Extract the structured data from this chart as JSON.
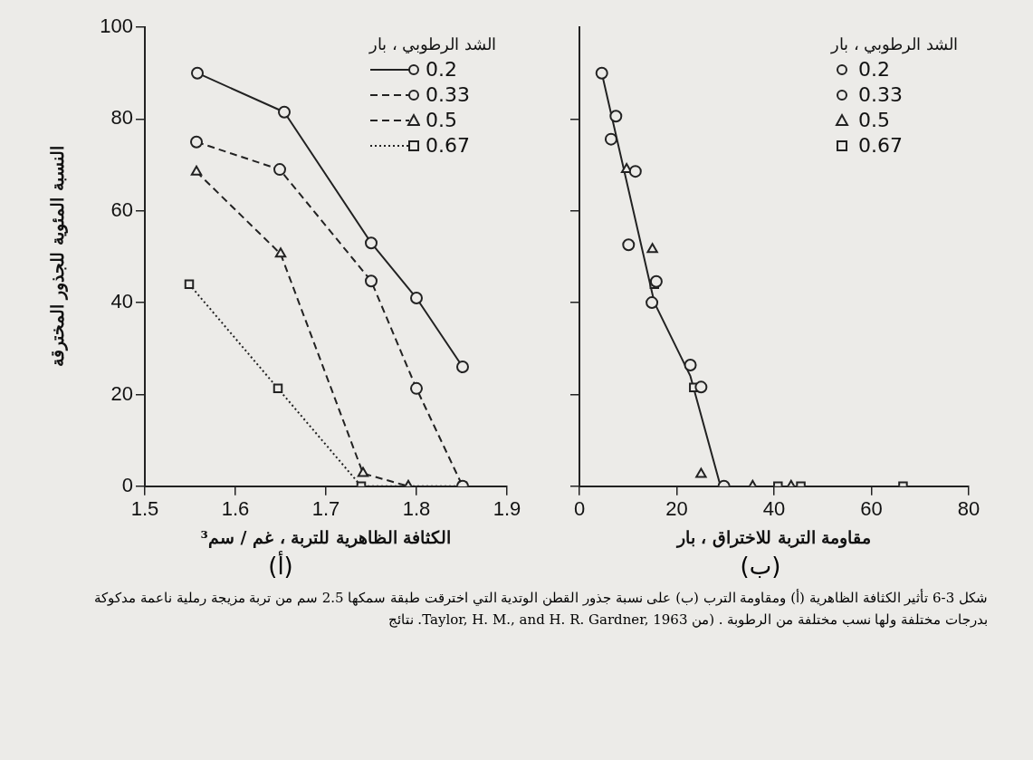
{
  "chart_data": [
    {
      "type": "line",
      "xlabel": "الكثافة الظاهرية للتربة ، غم / سم³",
      "ylabel": "النسبة المئوية للجذور المخترقة",
      "legend_title": "الشد الرطوبي ، بار",
      "legend": "top right",
      "grid": false,
      "xlim": [
        1.5,
        1.9
      ],
      "xticks": [
        1.5,
        1.6,
        1.7,
        1.8,
        1.9
      ],
      "ylim": [
        0,
        100
      ],
      "yticks": [
        0,
        20,
        40,
        60,
        80,
        100
      ],
      "series": [
        {
          "name": "0.2",
          "color": "#222222",
          "marker": "circle",
          "line_style": "solid",
          "x": [
            1.558,
            1.654,
            1.75,
            1.8,
            1.851
          ],
          "values": [
            90,
            81.5,
            53,
            41,
            26
          ]
        },
        {
          "name": "0.33",
          "color": "#222222",
          "marker": "circle",
          "line_style": "dashed",
          "x": [
            1.557,
            1.649,
            1.75,
            1.8,
            1.851
          ],
          "values": [
            75,
            69,
            44.7,
            21.3,
            0
          ]
        },
        {
          "name": "0.5",
          "color": "#222222",
          "marker": "triangle",
          "line_style": "dashed",
          "x": [
            1.557,
            1.65,
            1.741,
            1.791
          ],
          "values": [
            68.5,
            50.6,
            2.8,
            0
          ]
        },
        {
          "name": "0.67",
          "color": "#222222",
          "marker": "square",
          "line_style": "dotted",
          "x": [
            1.549,
            1.647,
            1.739,
            1.851
          ],
          "values": [
            44,
            21.3,
            0,
            0
          ]
        }
      ],
      "annotations": [
        "(أ)",
        "شكل 3-6 تأثير الكثافة الظاهرية (أ) ومقاومة الترب (ب) على نسبة جذور القطن الوتدية التي اخترقت طبقة سمكها 2.5 سم من تربة مزيجة رملية ناعمة مدكوكة بدرجات مختلفة ولها نسب مختلفة من الرطوبة . (من Taylor, H. M., and H. R. Gardner, 1963. نتائج"
      ]
    },
    {
      "type": "scatter",
      "xlabel": "مقاومة التربة للاختراق ، بار",
      "legend_title": "الشد الرطوبي ، بار",
      "legend": "top right",
      "grid": false,
      "tick_labels": "x",
      "xlim": [
        0,
        80
      ],
      "xticks": [
        0,
        20,
        40,
        60,
        80
      ],
      "ylim": [
        0,
        100
      ],
      "yticks": [
        {
          "value": 0,
          "label": null
        },
        {
          "value": 20,
          "label": null
        },
        {
          "value": 40,
          "label": null
        },
        {
          "value": 60,
          "label": null
        },
        {
          "value": 80,
          "label": null
        }
      ],
      "series": [
        {
          "name": "0.2",
          "color": "#222222",
          "marker": "circle",
          "x": [
            4.6,
            7.5,
            10.1,
            14.9,
            22.8
          ],
          "values": [
            90,
            80.6,
            52.6,
            40,
            26.4
          ]
        },
        {
          "name": "0.33",
          "color": "#222222",
          "marker": "circle",
          "x": [
            6.5,
            11.5,
            15.8,
            25,
            29.7
          ],
          "values": [
            75.6,
            68.6,
            44.6,
            21.6,
            0
          ]
        },
        {
          "name": "0.5",
          "color": "#222222",
          "marker": "triangle",
          "x": [
            9.7,
            15,
            25,
            35.6,
            43.5
          ],
          "values": [
            69,
            51.6,
            2.6,
            0,
            0
          ]
        },
        {
          "name": "0.67",
          "color": "#222222",
          "marker": "square",
          "x": [
            15.4,
            23.5,
            40.8,
            45.5,
            66.5
          ],
          "values": [
            44,
            21.5,
            0,
            0,
            0
          ]
        },
        {
          "type": "line",
          "color": "#222222",
          "marker": "none",
          "x": [
            4.6,
            15.4,
            22.8,
            29
          ],
          "values": [
            90,
            40,
            24,
            0
          ]
        }
      ],
      "annotations": [
        "(ب)"
      ]
    }
  ]
}
